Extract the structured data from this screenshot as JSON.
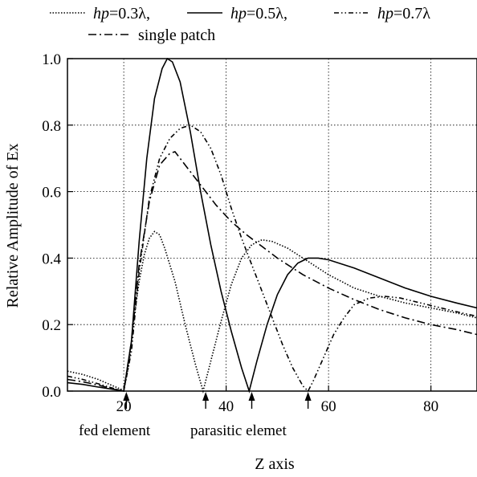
{
  "chart_data": {
    "type": "line",
    "xlabel": "Z axis",
    "ylabel": "Relative Amplitude of Ex",
    "xlim": [
      9,
      89
    ],
    "ylim": [
      0,
      1.0
    ],
    "xticks": [
      20,
      40,
      60,
      80
    ],
    "yticks": [
      "0.0",
      "0.2",
      "0.4",
      "0.6",
      "0.8",
      "1.0"
    ],
    "grid": true,
    "legend_position": "top",
    "series": [
      {
        "name": "hp=0.3λ",
        "legend_italic": "hp",
        "legend_rest": "=0.3λ,",
        "dash": "1.5 2",
        "points": [
          [
            9,
            0.06
          ],
          [
            12,
            0.05
          ],
          [
            15,
            0.035
          ],
          [
            18,
            0.015
          ],
          [
            20,
            0.002
          ],
          [
            21,
            0.08
          ],
          [
            22,
            0.22
          ],
          [
            23,
            0.33
          ],
          [
            24,
            0.41
          ],
          [
            25,
            0.46
          ],
          [
            26,
            0.48
          ],
          [
            27,
            0.47
          ],
          [
            28,
            0.43
          ],
          [
            30,
            0.33
          ],
          [
            32,
            0.2
          ],
          [
            34,
            0.08
          ],
          [
            35.5,
            0.0
          ],
          [
            37,
            0.09
          ],
          [
            39,
            0.21
          ],
          [
            41,
            0.32
          ],
          [
            43,
            0.4
          ],
          [
            45,
            0.44
          ],
          [
            47,
            0.455
          ],
          [
            49,
            0.45
          ],
          [
            52,
            0.43
          ],
          [
            55,
            0.4
          ],
          [
            60,
            0.35
          ],
          [
            65,
            0.31
          ],
          [
            70,
            0.285
          ],
          [
            75,
            0.265
          ],
          [
            80,
            0.25
          ],
          [
            85,
            0.235
          ],
          [
            89,
            0.22
          ]
        ]
      },
      {
        "name": "hp=0.5λ",
        "legend_italic": "hp",
        "legend_rest": "=0.5λ,",
        "dash": "",
        "points": [
          [
            9,
            0.025
          ],
          [
            12,
            0.02
          ],
          [
            15,
            0.012
          ],
          [
            18,
            0.005
          ],
          [
            20,
            0.0
          ],
          [
            21.5,
            0.15
          ],
          [
            23,
            0.45
          ],
          [
            24.5,
            0.7
          ],
          [
            26,
            0.88
          ],
          [
            27.5,
            0.97
          ],
          [
            28.5,
            1.0
          ],
          [
            29.5,
            0.99
          ],
          [
            31,
            0.93
          ],
          [
            33,
            0.78
          ],
          [
            35,
            0.6
          ],
          [
            37,
            0.44
          ],
          [
            39,
            0.3
          ],
          [
            41,
            0.18
          ],
          [
            43,
            0.07
          ],
          [
            44.5,
            0.0
          ],
          [
            46,
            0.09
          ],
          [
            48,
            0.2
          ],
          [
            50,
            0.29
          ],
          [
            52,
            0.35
          ],
          [
            54,
            0.385
          ],
          [
            56,
            0.4
          ],
          [
            58,
            0.4
          ],
          [
            60,
            0.395
          ],
          [
            65,
            0.37
          ],
          [
            70,
            0.34
          ],
          [
            75,
            0.31
          ],
          [
            80,
            0.285
          ],
          [
            85,
            0.265
          ],
          [
            89,
            0.25
          ]
        ]
      },
      {
        "name": "hp=0.7λ",
        "legend_italic": "hp",
        "legend_rest": "=0.7λ",
        "dash": "6 3 1.5 3 1.5 3",
        "points": [
          [
            9,
            0.045
          ],
          [
            12,
            0.035
          ],
          [
            15,
            0.022
          ],
          [
            18,
            0.008
          ],
          [
            20,
            0.0
          ],
          [
            21.5,
            0.12
          ],
          [
            23,
            0.36
          ],
          [
            25,
            0.58
          ],
          [
            27,
            0.7
          ],
          [
            29,
            0.76
          ],
          [
            31,
            0.79
          ],
          [
            33,
            0.8
          ],
          [
            35,
            0.78
          ],
          [
            37,
            0.73
          ],
          [
            39,
            0.65
          ],
          [
            41,
            0.55
          ],
          [
            43,
            0.46
          ],
          [
            45,
            0.38
          ],
          [
            47,
            0.3
          ],
          [
            49,
            0.22
          ],
          [
            51,
            0.14
          ],
          [
            53,
            0.07
          ],
          [
            55,
            0.015
          ],
          [
            56,
            0.0
          ],
          [
            57,
            0.03
          ],
          [
            59,
            0.1
          ],
          [
            61,
            0.17
          ],
          [
            63,
            0.22
          ],
          [
            65,
            0.26
          ],
          [
            68,
            0.28
          ],
          [
            71,
            0.285
          ],
          [
            74,
            0.28
          ],
          [
            78,
            0.265
          ],
          [
            82,
            0.25
          ],
          [
            86,
            0.235
          ],
          [
            89,
            0.225
          ]
        ]
      },
      {
        "name": "single patch",
        "legend_italic": "",
        "legend_rest": "single patch",
        "dash": "10 4 2 4",
        "points": [
          [
            9,
            0.035
          ],
          [
            12,
            0.028
          ],
          [
            15,
            0.018
          ],
          [
            18,
            0.006
          ],
          [
            20,
            0.0
          ],
          [
            21.5,
            0.15
          ],
          [
            23,
            0.38
          ],
          [
            25,
            0.57
          ],
          [
            27,
            0.68
          ],
          [
            29,
            0.715
          ],
          [
            30,
            0.72
          ],
          [
            32,
            0.68
          ],
          [
            35,
            0.62
          ],
          [
            38,
            0.56
          ],
          [
            41,
            0.51
          ],
          [
            44,
            0.47
          ],
          [
            47,
            0.435
          ],
          [
            50,
            0.4
          ],
          [
            55,
            0.35
          ],
          [
            60,
            0.31
          ],
          [
            65,
            0.275
          ],
          [
            70,
            0.245
          ],
          [
            75,
            0.22
          ],
          [
            80,
            0.2
          ],
          [
            85,
            0.185
          ],
          [
            89,
            0.17
          ]
        ]
      }
    ],
    "annotations": {
      "fed_element": {
        "label": "fed element",
        "x": 20.5
      },
      "parasitic": {
        "label": "parasitic elemet",
        "xs": [
          36,
          45,
          56
        ]
      }
    }
  }
}
